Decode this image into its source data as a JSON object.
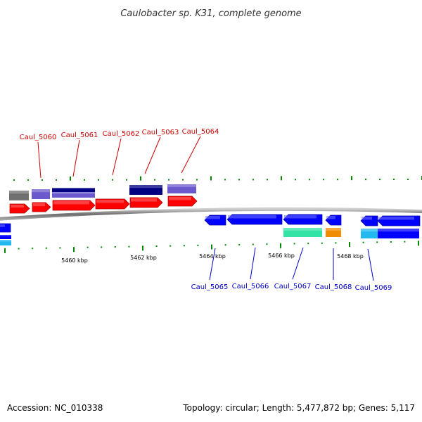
{
  "title": "Caulobacter sp. K31, complete genome",
  "footer": {
    "accession": "Accession: NC_010338",
    "summary": "Topology: circular; Length: 5,477,872 bp; Genes: 5,117"
  },
  "colors": {
    "forward_label": "#cc0000",
    "reverse_label": "#0000cc",
    "tick": "#008800",
    "red": "#ff0000",
    "blue": "#0000ff",
    "navy": "#000080",
    "slate": "#6a5acd",
    "gray": "#707070",
    "teal": "#33e3a6",
    "orange": "#f08c00",
    "sky": "#22b8f0"
  },
  "axis": {
    "tick_labels": [
      "5460 kbp",
      "5462 kbp",
      "5464 kbp",
      "5466 kbp",
      "5468 kbp"
    ]
  },
  "gene_labels": {
    "forward": [
      "Caul_5060",
      "Caul_5061",
      "Caul_5062",
      "Caul_5063",
      "Caul_5064"
    ],
    "reverse": [
      "Caul_5065",
      "Caul_5066",
      "Caul_5067",
      "Caul_5068",
      "Caul_5069"
    ]
  }
}
